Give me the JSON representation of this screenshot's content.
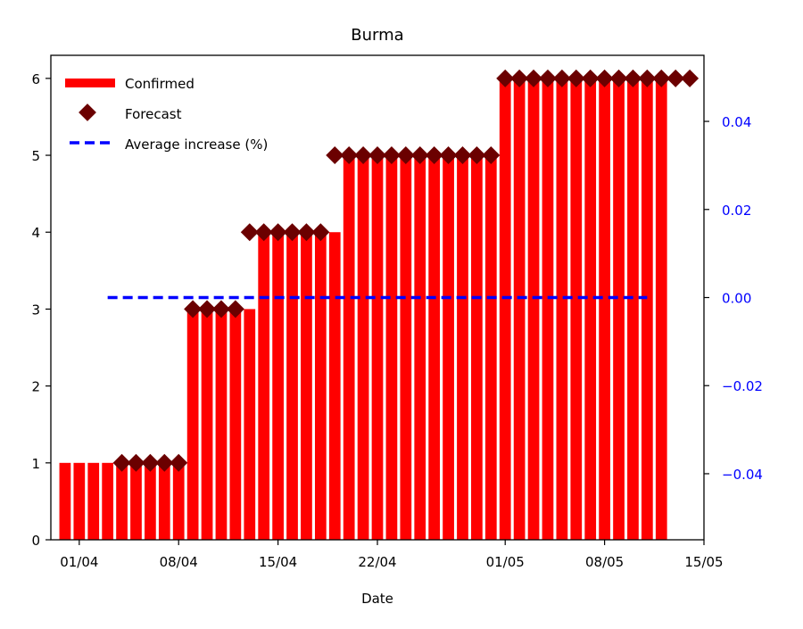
{
  "chart_data": {
    "type": "bar",
    "title": "Burma",
    "xlabel": "Date",
    "ylabel": "",
    "ylim": [
      0,
      6.3
    ],
    "yticks": [
      0,
      1,
      2,
      3,
      4,
      5,
      6
    ],
    "y2lim": [
      -0.055,
      0.055
    ],
    "y2ticks": [
      -0.04,
      -0.02,
      0.0,
      0.02,
      0.04
    ],
    "y2tick_labels": [
      "−0.04",
      "−0.02",
      "0.00",
      "0.02",
      "0.04"
    ],
    "xlim": [
      "2020-03-30",
      "2020-05-15"
    ],
    "xticks": [
      "2020-04-01",
      "2020-04-08",
      "2020-04-15",
      "2020-04-22",
      "2020-05-01",
      "2020-05-08",
      "2020-05-15"
    ],
    "xtick_labels": [
      "01/04",
      "08/04",
      "15/04",
      "22/04",
      "01/05",
      "08/05",
      "15/05"
    ],
    "grid": false,
    "legend_position": "top-left",
    "series": [
      {
        "name": "Confirmed",
        "type": "bar",
        "color": "#ff0000",
        "start_date": "2020-03-31",
        "values": [
          1,
          1,
          1,
          1,
          1,
          1,
          1,
          1,
          1,
          3,
          3,
          3,
          3,
          3,
          4,
          4,
          4,
          4,
          4,
          4,
          5,
          5,
          5,
          5,
          5,
          5,
          5,
          5,
          5,
          5,
          5,
          6,
          6,
          6,
          6,
          6,
          6,
          6,
          6,
          6,
          6,
          6,
          6
        ]
      },
      {
        "name": "Forecast",
        "type": "scatter",
        "marker": "diamond",
        "color": "#6b0000",
        "points": [
          [
            "2020-04-04",
            1
          ],
          [
            "2020-04-05",
            1
          ],
          [
            "2020-04-06",
            1
          ],
          [
            "2020-04-07",
            1
          ],
          [
            "2020-04-08",
            1
          ],
          [
            "2020-04-09",
            3
          ],
          [
            "2020-04-10",
            3
          ],
          [
            "2020-04-11",
            3
          ],
          [
            "2020-04-12",
            3
          ],
          [
            "2020-04-13",
            4
          ],
          [
            "2020-04-14",
            4
          ],
          [
            "2020-04-15",
            4
          ],
          [
            "2020-04-16",
            4
          ],
          [
            "2020-04-17",
            4
          ],
          [
            "2020-04-18",
            4
          ],
          [
            "2020-04-19",
            5
          ],
          [
            "2020-04-20",
            5
          ],
          [
            "2020-04-21",
            5
          ],
          [
            "2020-04-22",
            5
          ],
          [
            "2020-04-23",
            5
          ],
          [
            "2020-04-24",
            5
          ],
          [
            "2020-04-25",
            5
          ],
          [
            "2020-04-26",
            5
          ],
          [
            "2020-04-27",
            5
          ],
          [
            "2020-04-28",
            5
          ],
          [
            "2020-04-29",
            5
          ],
          [
            "2020-04-30",
            5
          ],
          [
            "2020-05-01",
            6
          ],
          [
            "2020-05-02",
            6
          ],
          [
            "2020-05-03",
            6
          ],
          [
            "2020-05-04",
            6
          ],
          [
            "2020-05-05",
            6
          ],
          [
            "2020-05-06",
            6
          ],
          [
            "2020-05-07",
            6
          ],
          [
            "2020-05-08",
            6
          ],
          [
            "2020-05-09",
            6
          ],
          [
            "2020-05-10",
            6
          ],
          [
            "2020-05-11",
            6
          ],
          [
            "2020-05-12",
            6
          ],
          [
            "2020-05-13",
            6
          ],
          [
            "2020-05-14",
            6
          ]
        ]
      },
      {
        "name": "Average increase (%)",
        "type": "line",
        "axis": "right",
        "style": "dashed",
        "color": "#0000ff",
        "x": [
          "2020-04-03",
          "2020-05-11"
        ],
        "values": [
          0.0,
          0.0
        ]
      }
    ]
  }
}
